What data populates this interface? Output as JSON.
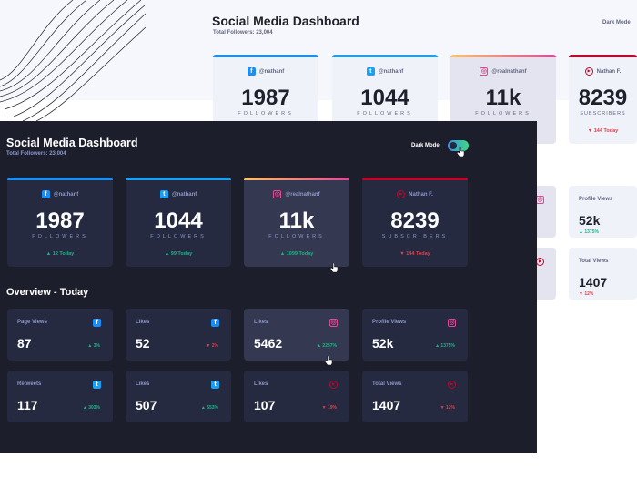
{
  "title": "Social Media Dashboard",
  "total_followers": "Total Followers: 23,004",
  "dark_mode_label": "Dark Mode",
  "dark_mode_on": true,
  "overview_title": "Overview - Today",
  "colors": {
    "facebook": "#198ff5",
    "twitter": "#1ca0f2",
    "instagram": "#df4996",
    "youtube": "#c4032a",
    "up": "#1db489",
    "down": "#dc414c",
    "dark_bg": "#1d1e2c",
    "dark_card": "#252a41"
  },
  "followers": [
    {
      "platform": "facebook",
      "icon": "facebook-icon",
      "handle": "@nathanf",
      "count": "1987",
      "unit": "FOLLOWERS",
      "today": "▲ 12 Today",
      "trend": "up"
    },
    {
      "platform": "twitter",
      "icon": "twitter-icon",
      "handle": "@nathanf",
      "count": "1044",
      "unit": "FOLLOWERS",
      "today": "▲ 99 Today",
      "trend": "up"
    },
    {
      "platform": "instagram",
      "icon": "instagram-icon",
      "handle": "@realnathanf",
      "count": "11k",
      "unit": "FOLLOWERS",
      "today": "▲ 1099 Today",
      "trend": "up"
    },
    {
      "platform": "youtube",
      "icon": "youtube-icon",
      "handle": "Nathan F.",
      "count": "8239",
      "unit": "SUBSCRIBERS",
      "today": "▼ 144 Today",
      "trend": "down"
    }
  ],
  "overview": [
    {
      "platform": "facebook",
      "label": "Page Views",
      "value": "87",
      "change": "▲ 3%",
      "trend": "up"
    },
    {
      "platform": "facebook",
      "label": "Likes",
      "value": "52",
      "change": "▼ 2%",
      "trend": "down"
    },
    {
      "platform": "instagram",
      "label": "Likes",
      "value": "5462",
      "change": "▲ 2257%",
      "trend": "up"
    },
    {
      "platform": "instagram",
      "label": "Profile Views",
      "value": "52k",
      "change": "▲ 1375%",
      "trend": "up"
    },
    {
      "platform": "twitter",
      "label": "Retweets",
      "value": "117",
      "change": "▲ 303%",
      "trend": "up"
    },
    {
      "platform": "twitter",
      "label": "Likes",
      "value": "507",
      "change": "▲ 553%",
      "trend": "up"
    },
    {
      "platform": "youtube",
      "label": "Likes",
      "value": "107",
      "change": "▼ 19%",
      "trend": "down"
    },
    {
      "platform": "youtube",
      "label": "Total Views",
      "value": "1407",
      "change": "▼ 12%",
      "trend": "down"
    }
  ]
}
